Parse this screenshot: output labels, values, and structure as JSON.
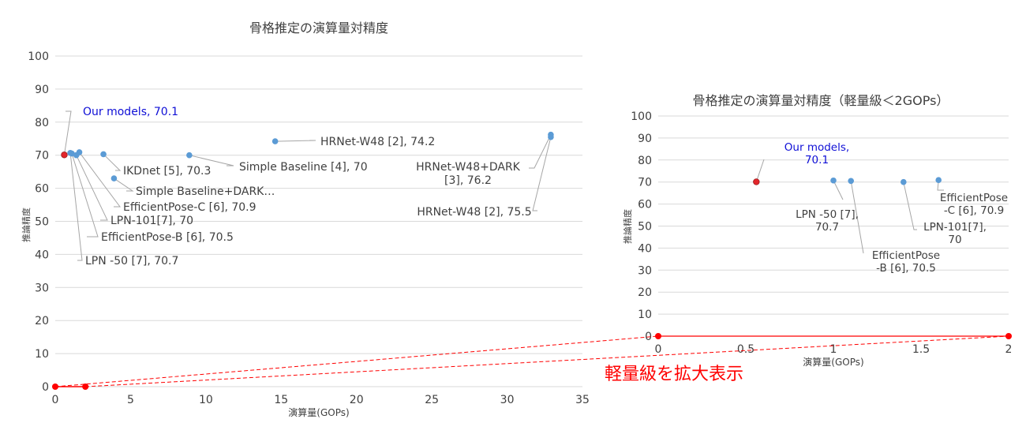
{
  "colors": {
    "point": "#5b9bd5",
    "highlight_point": "#e3262b",
    "callout_blue": "#0f0fd6",
    "text": "#404040",
    "grid": "#d9d9d9",
    "leader": "#a6a6a6",
    "red": "#ff0000"
  },
  "zoom_annotation": "軽量級を拡大表示",
  "chart_data": [
    {
      "type": "scatter",
      "title": "骨格推定の演算量対精度",
      "xlabel": "演算量(GOPs)",
      "ylabel": "推論精度",
      "xlim": [
        0,
        35
      ],
      "ylim": [
        0,
        100
      ],
      "x_ticks": [
        0,
        5,
        10,
        15,
        20,
        25,
        30,
        35
      ],
      "y_ticks": [
        0,
        10,
        20,
        30,
        40,
        50,
        60,
        70,
        80,
        90,
        100
      ],
      "x_tick_labels": [
        "0",
        "5",
        "10",
        "15",
        "20",
        "25",
        "30",
        "35"
      ],
      "y_tick_labels": [
        "0",
        "10",
        "20",
        "30",
        "40",
        "50",
        "60",
        "70",
        "80",
        "90",
        "100"
      ],
      "grid": true,
      "points": [
        {
          "x": 0.6,
          "y": 70.1,
          "label": "Our models, 70.1",
          "highlight": true
        },
        {
          "x": 1.0,
          "y": 70.7,
          "label": "LPN -50 [7], 70.7"
        },
        {
          "x": 1.1,
          "y": 70.5,
          "label": "EfficientPose-B [6], 70.5"
        },
        {
          "x": 1.4,
          "y": 70.0,
          "label": "LPN-101[7], 70"
        },
        {
          "x": 1.6,
          "y": 70.9,
          "label": "EfficientPose-C [6], 70.9"
        },
        {
          "x": 3.2,
          "y": 70.3,
          "label": "IKDnet [5], 70.3"
        },
        {
          "x": 3.9,
          "y": 63.0,
          "label": "Simple Baseline+DARK…"
        },
        {
          "x": 8.9,
          "y": 70.0,
          "label": "Simple Baseline [4], 70"
        },
        {
          "x": 14.6,
          "y": 74.2,
          "label": "HRNet-W48 [2], 74.2"
        },
        {
          "x": 32.9,
          "y": 76.2,
          "label": "HRNet-W48+DARK [3], 76.2"
        },
        {
          "x": 32.9,
          "y": 75.5,
          "label": "HRNet-W48 [2], 75.5"
        }
      ],
      "extra_markers": [
        {
          "x": 0,
          "y": 0
        },
        {
          "x": 2,
          "y": 0
        }
      ]
    },
    {
      "type": "scatter",
      "title": "骨格推定の演算量対精度（軽量級＜2GOPs）",
      "xlabel": "演算量(GOPs)",
      "ylabel": "推論精度",
      "xlim": [
        0,
        2
      ],
      "ylim": [
        0,
        100
      ],
      "x_ticks": [
        0,
        0.5,
        1,
        1.5,
        2
      ],
      "y_ticks": [
        0,
        10,
        20,
        30,
        40,
        50,
        60,
        70,
        80,
        90,
        100
      ],
      "x_tick_labels": [
        "0",
        "0.5",
        "1",
        "1.5",
        "2"
      ],
      "y_tick_labels": [
        "0",
        "10",
        "20",
        "30",
        "40",
        "50",
        "60",
        "70",
        "80",
        "90",
        "100"
      ],
      "grid": true,
      "points": [
        {
          "x": 0.56,
          "y": 70.1,
          "label": "Our models, 70.1",
          "highlight": true
        },
        {
          "x": 1.0,
          "y": 70.7,
          "label": "LPN -50 [7], 70.7"
        },
        {
          "x": 1.1,
          "y": 70.5,
          "label": "EfficientPose -B [6], 70.5"
        },
        {
          "x": 1.4,
          "y": 70.0,
          "label": "LPN-101[7], 70"
        },
        {
          "x": 1.6,
          "y": 70.9,
          "label": "EfficientPose -C [6], 70.9"
        }
      ],
      "extra_markers": [
        {
          "x": 0,
          "y": 0
        },
        {
          "x": 2,
          "y": 0
        }
      ]
    }
  ]
}
